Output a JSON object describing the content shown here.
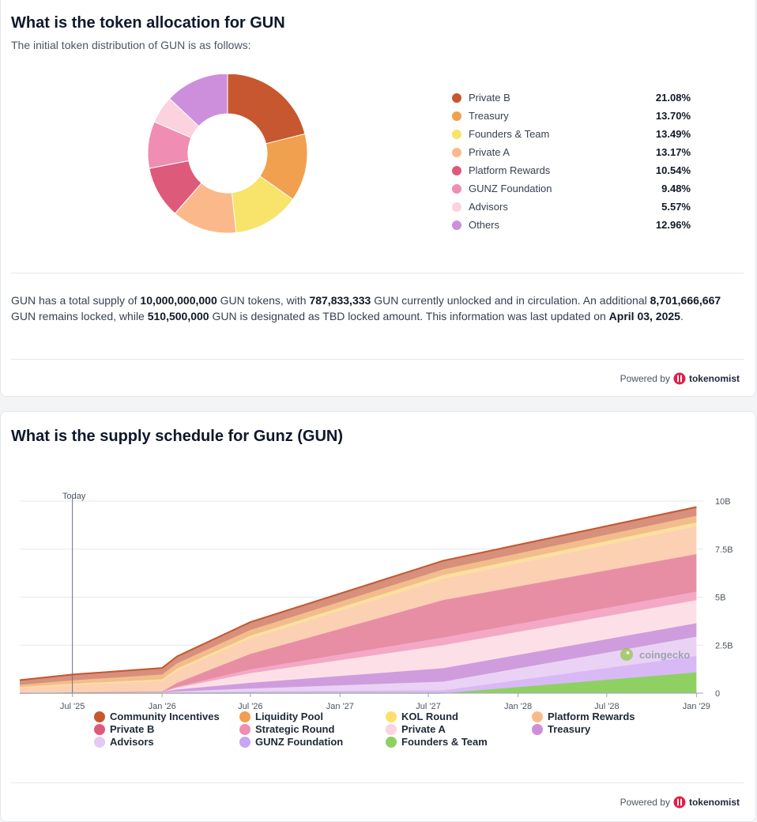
{
  "allocation": {
    "title": "What is the token allocation for GUN",
    "subtitle": "The initial token distribution of GUN is as follows:",
    "chart_data": {
      "type": "pie",
      "labels": [
        "Private B",
        "Treasury",
        "Founders & Team",
        "Private A",
        "Platform Rewards",
        "GUNZ Foundation",
        "Advisors",
        "Others"
      ],
      "values": [
        21.08,
        13.7,
        13.49,
        13.17,
        10.54,
        9.48,
        5.57,
        12.96
      ],
      "value_labels": [
        "21.08%",
        "13.70%",
        "13.49%",
        "13.17%",
        "10.54%",
        "9.48%",
        "5.57%",
        "12.96%"
      ],
      "colors": [
        "#c6572f",
        "#f0a04e",
        "#f8e36b",
        "#fbb98b",
        "#de5a7a",
        "#ef8db3",
        "#fbd2dd",
        "#cd8fdb"
      ]
    },
    "summary": {
      "t1": "GUN has a total supply of ",
      "total_supply": "10,000,000,000",
      "t2": " GUN tokens, with ",
      "unlocked": "787,833,333",
      "t3": " GUN currently unlocked and in circulation. An additional ",
      "locked": "8,701,666,667",
      "t4": " GUN remains locked, while ",
      "tbd": "510,500,000",
      "t5": " GUN is designated as TBD locked amount. This information was last updated on ",
      "updated": "April 03, 2025",
      "t6": "."
    },
    "powered_by": "Powered by",
    "brand": "tokenomist"
  },
  "schedule": {
    "title": "What is the supply schedule for Gunz (GUN)",
    "today_label": "Today",
    "watermark": "coingecko",
    "powered_by": "Powered by",
    "brand": "tokenomist",
    "chart_data": {
      "type": "area",
      "stacked": true,
      "x_ticks": [
        "Jul '25",
        "Jan '26",
        "Jul '26",
        "Jan '27",
        "Jul '27",
        "Jan '28",
        "Jul '28",
        "Jan '29"
      ],
      "y_ticks": [
        "0",
        "2.5B",
        "5B",
        "7.5B",
        "10B"
      ],
      "ylim": [
        0,
        10000000000
      ],
      "x": [
        "2025-03-15",
        "2025-07-01",
        "2026-01-01",
        "2026-02-01",
        "2026-07-01",
        "2027-08-01",
        "2029-01-01"
      ],
      "today": "2025-07-01",
      "legend_position": "bottom",
      "grid": true,
      "series": [
        {
          "name": "Founders & Team",
          "color": "#8ed162",
          "values": [
            0,
            0,
            0,
            0,
            0,
            0,
            1080000000
          ]
        },
        {
          "name": "GUNZ Foundation",
          "color": "#d8b9f6",
          "values": [
            0,
            10000000,
            20000000,
            40000000,
            90000000,
            150000000,
            860000000
          ]
        },
        {
          "name": "Advisors",
          "color": "#ead2f4",
          "values": [
            0,
            10000000,
            20000000,
            50000000,
            150000000,
            450000000,
            1000000000
          ]
        },
        {
          "name": "Treasury",
          "color": "#cf9ddd",
          "values": [
            0,
            20000000,
            40000000,
            100000000,
            300000000,
            700000000,
            700000000
          ]
        },
        {
          "name": "Private A",
          "color": "#fde0e7",
          "values": [
            0,
            0,
            0,
            100000000,
            500000000,
            1200000000,
            1200000000
          ]
        },
        {
          "name": "Strategic Round",
          "color": "#f3a8c6",
          "values": [
            0,
            0,
            0,
            50000000,
            200000000,
            400000000,
            450000000
          ]
        },
        {
          "name": "Private B",
          "color": "#e78ea4",
          "values": [
            0,
            0,
            0,
            200000000,
            800000000,
            1950000000,
            1950000000
          ]
        },
        {
          "name": "Platform Rewards",
          "color": "#fcd0b3",
          "values": [
            280000000,
            390000000,
            560000000,
            640000000,
            800000000,
            1100000000,
            1450000000
          ]
        },
        {
          "name": "KOL Round",
          "color": "#fbe0a0",
          "values": [
            40000000,
            60000000,
            80000000,
            100000000,
            150000000,
            200000000,
            200000000
          ]
        },
        {
          "name": "Liquidity Pool",
          "color": "#f3bc8c",
          "values": [
            110000000,
            180000000,
            250000000,
            280000000,
            300000000,
            300000000,
            350000000
          ]
        },
        {
          "name": "Community Incentives",
          "color": "#d6907c",
          "values": [
            250000000,
            300000000,
            340000000,
            360000000,
            410000000,
            450000000,
            450000000
          ]
        }
      ],
      "legend": [
        {
          "name": "Community Incentives",
          "color": "#c6572f"
        },
        {
          "name": "Liquidity Pool",
          "color": "#f0a04e"
        },
        {
          "name": "KOL Round",
          "color": "#fde06b"
        },
        {
          "name": "Platform Rewards",
          "color": "#fbb98b"
        },
        {
          "name": "Private B",
          "color": "#de5a7a"
        },
        {
          "name": "Strategic Round",
          "color": "#ef8db3"
        },
        {
          "name": "Private A",
          "color": "#fdd3de"
        },
        {
          "name": "Treasury",
          "color": "#cd8fdb"
        },
        {
          "name": "Advisors",
          "color": "#e3c9f3"
        },
        {
          "name": "GUNZ Foundation",
          "color": "#c9a5f3"
        },
        {
          "name": "Founders & Team",
          "color": "#8ed162"
        }
      ]
    }
  }
}
